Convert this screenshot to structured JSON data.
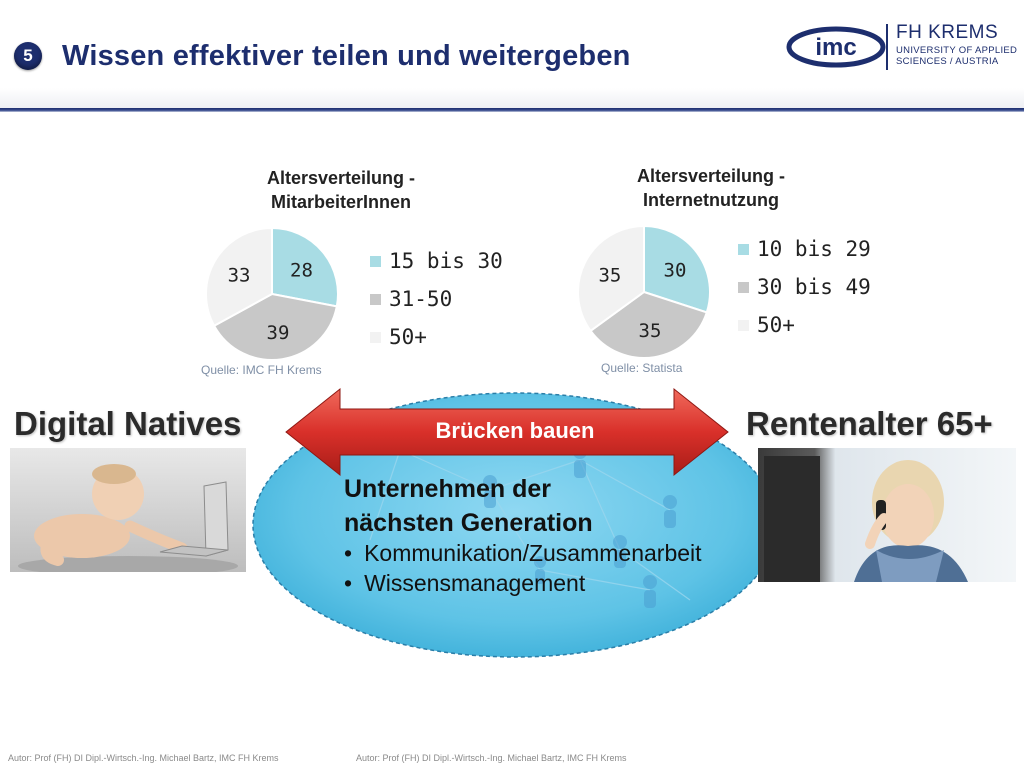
{
  "header": {
    "badge": "5",
    "title": "Wissen effektiver teilen und weitergeben"
  },
  "logo": {
    "mark": "imc",
    "line1": "FH KREMS",
    "line2": "UNIVERSITY OF APPLIED",
    "line3": "SCIENCES / AUSTRIA"
  },
  "chart_data": [
    {
      "type": "pie",
      "title_line1": "Altersverteilung -",
      "title_line2": "MitarbeiterInnen",
      "categories": [
        "15 bis 30",
        "31-50",
        "50+"
      ],
      "values": [
        28,
        39,
        33
      ],
      "colors": [
        "#a8dce4",
        "#c8c8c8",
        "#f2f2f2"
      ],
      "source": "Quelle: IMC FH Krems"
    },
    {
      "type": "pie",
      "title_line1": "Altersverteilung -",
      "title_line2": "Internetnutzung",
      "categories": [
        "10 bis 29",
        "30 bis 49",
        "50+"
      ],
      "values": [
        30,
        35,
        35
      ],
      "colors": [
        "#a8dce4",
        "#c8c8c8",
        "#f2f2f2"
      ],
      "source": "Quelle: Statista"
    }
  ],
  "left_label": "Digital Natives",
  "right_label": "Rentenalter 65+",
  "arrow_label": "Brücken bauen",
  "ellipse": {
    "heading_line1": "Unternehmen der",
    "heading_line2": "nächsten Generation",
    "bullets": [
      "Kommunikation/Zusammenarbeit",
      "Wissensmanagement"
    ]
  },
  "footer": {
    "left": "Autor: Prof (FH) DI Dipl.-Wirtsch.-Ing. Michael Bartz, IMC FH Krems",
    "right": "Autor: Prof (FH) DI Dipl.-Wirtsch.-Ing. Michael Bartz, IMC FH Krems"
  },
  "colors": {
    "brand_navy": "#1d2e6e",
    "arrow_red": "#d9302a",
    "ellipse_blue": "#5ec3e6"
  }
}
